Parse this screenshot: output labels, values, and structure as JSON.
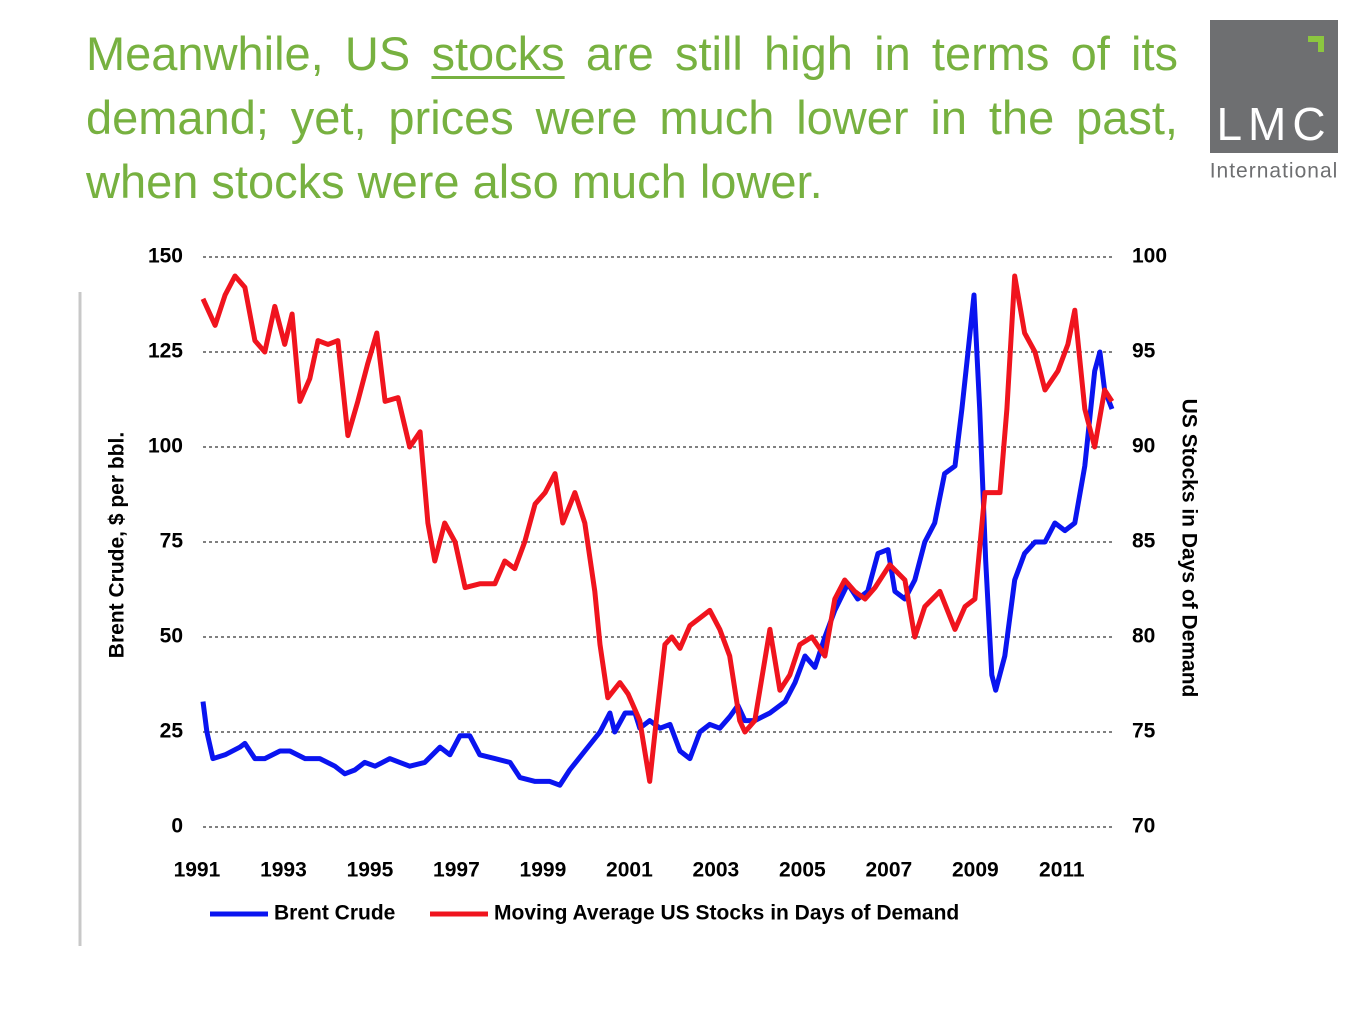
{
  "slide": {
    "title": [
      "Meanwhile, US ",
      "stocks",
      " are still high in terms of its demand; yet, prices were much lower in the past, when stocks were also much lower."
    ]
  },
  "logo": {
    "name": "LMC",
    "subtitle": "International"
  },
  "chart_data": {
    "type": "line",
    "ylabel": "Brent Crude, $ per bbl.",
    "y2label": "US Stocks in Days of Demand",
    "xlim": [
      1991.14,
      2012.16
    ],
    "xticks": [
      1991,
      1993,
      1995,
      1997,
      1999,
      2001,
      2003,
      2005,
      2007,
      2009,
      2011
    ],
    "ylim": [
      0,
      150
    ],
    "yticks": [
      0,
      25,
      50,
      75,
      100,
      125,
      150
    ],
    "y2lim": [
      70,
      100
    ],
    "y2ticks": [
      70,
      75,
      80,
      85,
      90,
      95,
      100
    ],
    "grid": true,
    "legend": "bottom",
    "series": [
      {
        "name": "Brent Crude",
        "color": "#0a14f0",
        "x": [
          1991.14,
          1991.23,
          1991.37,
          1991.65,
          1991.99,
          1992.11,
          1992.34,
          1992.57,
          1992.92,
          1993.15,
          1993.5,
          1993.84,
          1994.19,
          1994.42,
          1994.65,
          1994.88,
          1995.12,
          1995.46,
          1995.69,
          1995.92,
          1996.27,
          1996.62,
          1996.85,
          1997.08,
          1997.31,
          1997.54,
          1997.89,
          1998.24,
          1998.47,
          1998.82,
          1999.16,
          1999.39,
          1999.62,
          1999.97,
          2000.32,
          2000.55,
          2000.66,
          2000.9,
          2001.13,
          2001.24,
          2001.47,
          2001.71,
          2001.94,
          2002.17,
          2002.4,
          2002.63,
          2002.86,
          2003.09,
          2003.32,
          2003.51,
          2003.67,
          2003.9,
          2004.25,
          2004.6,
          2004.83,
          2005.06,
          2005.29,
          2005.52,
          2005.75,
          2006.05,
          2006.28,
          2006.51,
          2006.75,
          2006.98,
          2007.14,
          2007.37,
          2007.6,
          2007.83,
          2008.06,
          2008.29,
          2008.53,
          2008.69,
          2008.83,
          2008.97,
          2009.1,
          2009.24,
          2009.38,
          2009.47,
          2009.68,
          2009.91,
          2010.14,
          2010.38,
          2010.61,
          2010.84,
          2011.07,
          2011.3,
          2011.53,
          2011.76,
          2011.88,
          2011.99,
          2012.16
        ],
        "values": [
          33,
          25,
          18,
          19,
          21,
          22,
          18,
          18,
          20,
          20,
          18,
          18,
          16,
          14,
          15,
          17,
          16,
          18,
          17,
          16,
          17,
          21,
          19,
          24,
          24,
          19,
          18,
          17,
          13,
          12,
          12,
          11,
          15,
          20,
          25,
          30,
          25,
          30,
          30,
          26,
          28,
          26,
          27,
          20,
          18,
          25,
          27,
          26,
          29,
          32,
          28,
          28,
          30,
          33,
          38,
          45,
          42,
          50,
          57,
          64,
          60,
          62,
          72,
          73,
          62,
          60,
          65,
          75,
          80,
          93,
          95,
          110,
          125,
          140,
          110,
          70,
          40,
          36,
          45,
          65,
          72,
          75,
          75,
          80,
          78,
          80,
          95,
          120,
          125,
          115,
          110
        ]
      },
      {
        "name": "Moving Average US Stocks in Days of Demand",
        "color": "#f0141e",
        "axis": "y2",
        "x": [
          1991.14,
          1991.42,
          1991.65,
          1991.88,
          1992.11,
          1992.34,
          1992.57,
          1992.8,
          1993.03,
          1993.2,
          1993.38,
          1993.61,
          1993.8,
          1994.03,
          1994.26,
          1994.49,
          1994.72,
          1994.95,
          1995.16,
          1995.35,
          1995.65,
          1995.92,
          1996.16,
          1996.34,
          1996.5,
          1996.73,
          1996.97,
          1997.2,
          1997.54,
          1997.89,
          1998.12,
          1998.35,
          1998.58,
          1998.82,
          1999.05,
          1999.28,
          1999.46,
          1999.74,
          1999.97,
          2000.2,
          2000.32,
          2000.5,
          2000.78,
          2000.97,
          2001.24,
          2001.47,
          2001.64,
          2001.82,
          2001.98,
          2002.17,
          2002.4,
          2002.63,
          2002.86,
          2003.09,
          2003.32,
          2003.55,
          2003.67,
          2003.9,
          2004.25,
          2004.48,
          2004.71,
          2004.94,
          2005.22,
          2005.52,
          2005.75,
          2005.98,
          2006.21,
          2006.45,
          2006.68,
          2007.02,
          2007.37,
          2007.6,
          2007.83,
          2008.18,
          2008.53,
          2008.76,
          2008.99,
          2009.22,
          2009.57,
          2009.73,
          2009.91,
          2010.14,
          2010.38,
          2010.61,
          2010.91,
          2011.14,
          2011.3,
          2011.53,
          2011.76,
          2011.99,
          2012.16
        ],
        "values": [
          97.8,
          96.4,
          98,
          99,
          98.4,
          95.6,
          95,
          97.4,
          95.4,
          97,
          92.4,
          93.6,
          95.6,
          95.4,
          95.6,
          90.6,
          92.4,
          94.4,
          96,
          92.4,
          92.6,
          90,
          90.8,
          86,
          84,
          86,
          85,
          82.6,
          82.8,
          82.8,
          84,
          83.6,
          85,
          87,
          87.6,
          88.6,
          86,
          87.6,
          86,
          82.4,
          79.6,
          76.8,
          77.6,
          77,
          75.6,
          72.4,
          76,
          79.6,
          80,
          79.4,
          80.6,
          81,
          81.4,
          80.4,
          79,
          75.6,
          75,
          75.6,
          80.4,
          77.2,
          78,
          79.6,
          80,
          79,
          82,
          83,
          82.4,
          82,
          82.6,
          83.8,
          83,
          80,
          81.6,
          82.4,
          80.4,
          81.6,
          82,
          87.6,
          87.6,
          92,
          99,
          96,
          95,
          93,
          94,
          95.4,
          97.2,
          92,
          90,
          93,
          92.4
        ]
      }
    ]
  }
}
